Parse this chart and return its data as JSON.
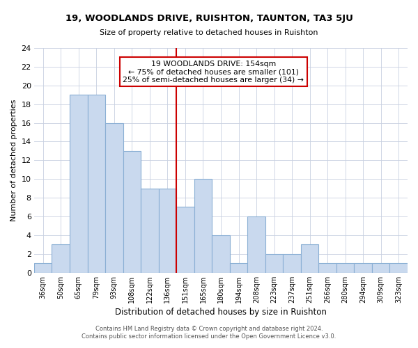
{
  "title": "19, WOODLANDS DRIVE, RUISHTON, TAUNTON, TA3 5JU",
  "subtitle": "Size of property relative to detached houses in Ruishton",
  "xlabel": "Distribution of detached houses by size in Ruishton",
  "ylabel": "Number of detached properties",
  "bin_labels": [
    "36sqm",
    "50sqm",
    "65sqm",
    "79sqm",
    "93sqm",
    "108sqm",
    "122sqm",
    "136sqm",
    "151sqm",
    "165sqm",
    "180sqm",
    "194sqm",
    "208sqm",
    "223sqm",
    "237sqm",
    "251sqm",
    "266sqm",
    "280sqm",
    "294sqm",
    "309sqm",
    "323sqm"
  ],
  "bar_heights": [
    1,
    3,
    19,
    19,
    16,
    13,
    9,
    9,
    7,
    10,
    4,
    1,
    6,
    2,
    2,
    3,
    1,
    1,
    1,
    1,
    1
  ],
  "bar_color": "#c9d9ee",
  "bar_edge_color": "#8aafd4",
  "property_line_x": 7.5,
  "property_line_color": "#cc0000",
  "ylim": [
    0,
    24
  ],
  "yticks": [
    0,
    2,
    4,
    6,
    8,
    10,
    12,
    14,
    16,
    18,
    20,
    22,
    24
  ],
  "annotation_title": "19 WOODLANDS DRIVE: 154sqm",
  "annotation_line1": "← 75% of detached houses are smaller (101)",
  "annotation_line2": "25% of semi-detached houses are larger (34) →",
  "annotation_box_color": "#ffffff",
  "annotation_box_edge": "#cc0000",
  "footer_line1": "Contains HM Land Registry data © Crown copyright and database right 2024.",
  "footer_line2": "Contains public sector information licensed under the Open Government Licence v3.0.",
  "background_color": "#ffffff",
  "grid_color": "#c8d0e0"
}
